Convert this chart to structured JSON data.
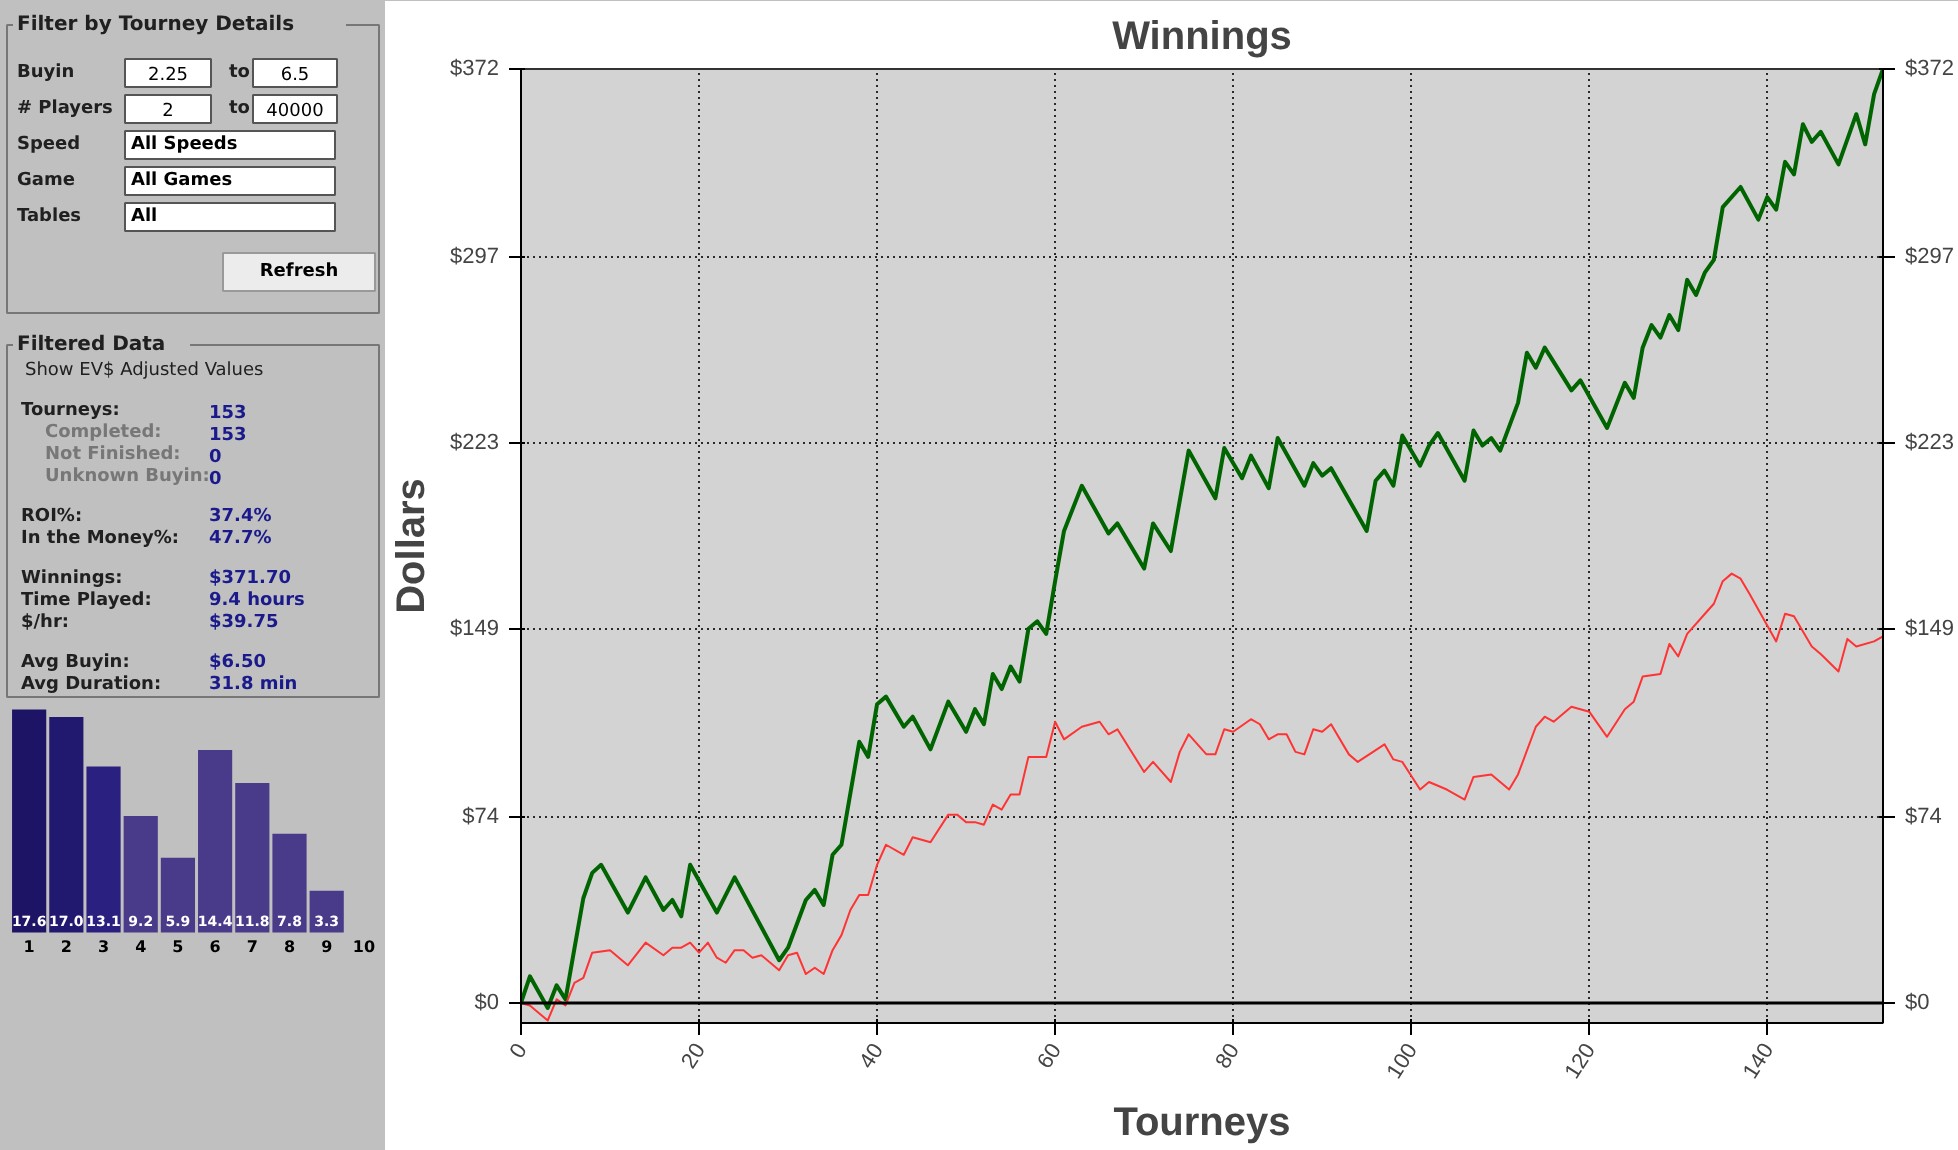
{
  "chart_data": [
    {
      "type": "line",
      "title": "Winnings",
      "xlabel": "Tourneys",
      "ylabel": "Dollars",
      "xlim": [
        0,
        153
      ],
      "ylim": [
        -8,
        372
      ],
      "y2lim": [
        -8,
        372
      ],
      "xticks": [
        0,
        20,
        40,
        60,
        80,
        100,
        120,
        140
      ],
      "yticks": [
        {
          "value": 0,
          "label": "$0"
        },
        {
          "value": 74,
          "label": "$74"
        },
        {
          "value": 149,
          "label": "$149"
        },
        {
          "value": 223,
          "label": "$223"
        },
        {
          "value": 297,
          "label": "$297"
        },
        {
          "value": 372,
          "label": "$372"
        }
      ],
      "y2ticks": [
        {
          "value": 0,
          "label": "$0"
        },
        {
          "value": 74,
          "label": "$74"
        },
        {
          "value": 149,
          "label": "$149"
        },
        {
          "value": 223,
          "label": "$223"
        },
        {
          "value": 297,
          "label": "$297"
        },
        {
          "value": 372,
          "label": "$372"
        }
      ],
      "grid": true,
      "ref_lines": [
        {
          "axis": "y",
          "value": 0,
          "color": "#000000"
        }
      ],
      "series": [
        {
          "color": "#006400",
          "x": [
            0,
            1,
            3,
            4,
            5,
            6,
            7,
            8,
            9,
            12,
            14,
            16,
            17,
            18,
            19,
            22,
            24,
            29,
            30,
            32,
            33,
            34,
            35,
            36,
            38,
            39,
            40,
            41,
            43,
            44,
            46,
            48,
            50,
            51,
            52,
            53,
            54,
            55,
            56,
            57,
            58,
            59,
            60,
            61,
            63,
            66,
            67,
            70,
            71,
            73,
            75,
            78,
            79,
            81,
            82,
            84,
            85,
            88,
            89,
            90,
            91,
            95,
            96,
            97,
            98,
            99,
            101,
            102,
            103,
            106,
            107,
            108,
            109,
            110,
            112,
            113,
            114,
            115,
            118,
            119,
            122,
            124,
            125,
            126,
            127,
            128,
            129,
            130,
            131,
            132,
            133,
            134,
            135,
            137,
            139,
            140,
            141,
            142,
            143,
            144,
            145,
            146,
            148,
            150,
            151,
            152,
            153
          ],
          "values": [
            0,
            10.6,
            -2,
            7,
            1.4,
            21.6,
            41.7,
            51.8,
            55,
            36,
            50,
            37,
            41,
            34.5,
            55,
            36,
            50,
            17,
            22,
            41,
            45,
            39,
            59,
            63,
            104,
            98,
            119,
            122,
            110,
            114,
            101,
            120,
            108,
            117,
            111,
            131,
            125,
            134,
            128,
            149,
            152,
            147,
            168,
            188,
            206,
            187,
            191,
            173,
            191,
            180,
            220,
            201,
            221,
            209,
            218,
            205,
            225,
            206,
            215,
            210,
            213,
            188,
            208,
            212,
            206,
            226,
            214,
            222,
            227,
            208,
            228,
            222,
            225,
            220,
            239,
            259,
            253,
            261,
            244,
            248,
            229,
            247,
            241,
            261,
            270,
            265,
            274,
            268,
            288,
            282,
            291,
            296,
            317,
            325,
            312,
            321,
            316,
            335,
            330,
            350,
            343,
            347,
            334,
            354,
            342,
            362,
            372
          ]
        },
        {
          "color": "#ff3333",
          "x": [
            0,
            1,
            2,
            3,
            4,
            5,
            6,
            7,
            8,
            10,
            12,
            14,
            16,
            17,
            18,
            19,
            20,
            21,
            22,
            23,
            24,
            25,
            26,
            27,
            29,
            30,
            31,
            32,
            33,
            34,
            35,
            36,
            37,
            38,
            39,
            40,
            41,
            43,
            44,
            46,
            48,
            49,
            50,
            51,
            52,
            53,
            54,
            55,
            56,
            57,
            59,
            60,
            61,
            63,
            65,
            66,
            67,
            70,
            71,
            73,
            74,
            75,
            77,
            78,
            79,
            80,
            82,
            83,
            84,
            85,
            86,
            87,
            88,
            89,
            90,
            91,
            93,
            94,
            97,
            98,
            99,
            101,
            102,
            104,
            106,
            107,
            109,
            111,
            112,
            114,
            115,
            116,
            118,
            120,
            122,
            124,
            125,
            126,
            128,
            129,
            130,
            131,
            133,
            134,
            135,
            136,
            137,
            138,
            141,
            142,
            143,
            145,
            146,
            148,
            149,
            150,
            152,
            153
          ],
          "values": [
            0,
            -1,
            -4,
            -7,
            1.4,
            -1,
            8,
            10,
            20,
            21,
            15,
            24,
            19,
            22,
            22,
            24,
            20,
            24,
            18,
            16,
            21,
            21,
            18,
            19,
            13,
            19,
            20,
            11.5,
            14,
            11.5,
            21,
            27,
            37,
            43,
            43,
            55,
            63,
            59,
            66,
            64,
            75,
            75,
            72,
            72,
            71,
            79,
            77,
            83,
            83,
            98,
            98,
            112,
            105,
            110,
            112,
            107,
            109,
            92,
            96,
            88,
            100,
            107,
            99,
            99,
            109,
            108,
            113,
            111,
            105,
            107,
            107,
            100,
            99,
            109,
            108,
            111,
            99,
            96,
            103,
            97,
            96,
            85,
            88,
            85,
            81,
            90,
            91,
            85,
            91,
            110,
            114,
            112,
            118,
            116,
            106,
            117,
            120,
            130,
            131,
            143,
            138,
            147,
            155,
            159,
            168,
            171,
            169,
            163,
            144,
            155,
            154,
            142,
            139,
            132,
            145,
            142,
            144,
            146
          ]
        }
      ]
    },
    {
      "type": "other",
      "title": "Filter by Tourney Details",
      "annotations": [
        "Buyin",
        "2.25",
        "to",
        "6.5",
        "# Players",
        "2",
        "to",
        "40000",
        "Speed",
        "All Speeds",
        "Game",
        "All Games",
        "Tables",
        "All",
        "Refresh"
      ]
    },
    {
      "type": "other",
      "title": "Filtered Data",
      "annotations": [
        "Show EV$ Adjusted Values",
        "Tourneys:",
        "153",
        "Completed:",
        "153",
        "Not Finished:",
        "0",
        "Unknown Buyin:",
        "0",
        "ROI%:",
        "37.4%",
        "In the Money%:",
        "47.7%",
        "Winnings:",
        "$371.70",
        "Time Played:",
        "9.4 hours",
        "$/hr:",
        "$39.75",
        "Avg Buyin:",
        "$6.50",
        "Avg Duration:",
        "31.8 min"
      ]
    },
    {
      "type": "bar",
      "categories": [
        "1",
        "2",
        "3",
        "4",
        "5",
        "6",
        "7",
        "8",
        "9",
        "10"
      ],
      "values": [
        17.6,
        17.0,
        13.1,
        9.2,
        5.9,
        14.4,
        11.8,
        7.8,
        3.3,
        null
      ],
      "colors": [
        "#1e1466",
        "#211870",
        "#2a2080",
        "#4a3a8a",
        "#4a3a8a",
        "#4a3a8a",
        "#4a3a8a",
        "#4a3a8a",
        "#4a3a8a",
        "#4a3a8a"
      ],
      "value_labels": [
        "17.6",
        "17.0",
        "13.1",
        "9.2",
        "5.9",
        "14.4",
        "11.8",
        "7.8",
        "3.3",
        null
      ]
    }
  ]
}
